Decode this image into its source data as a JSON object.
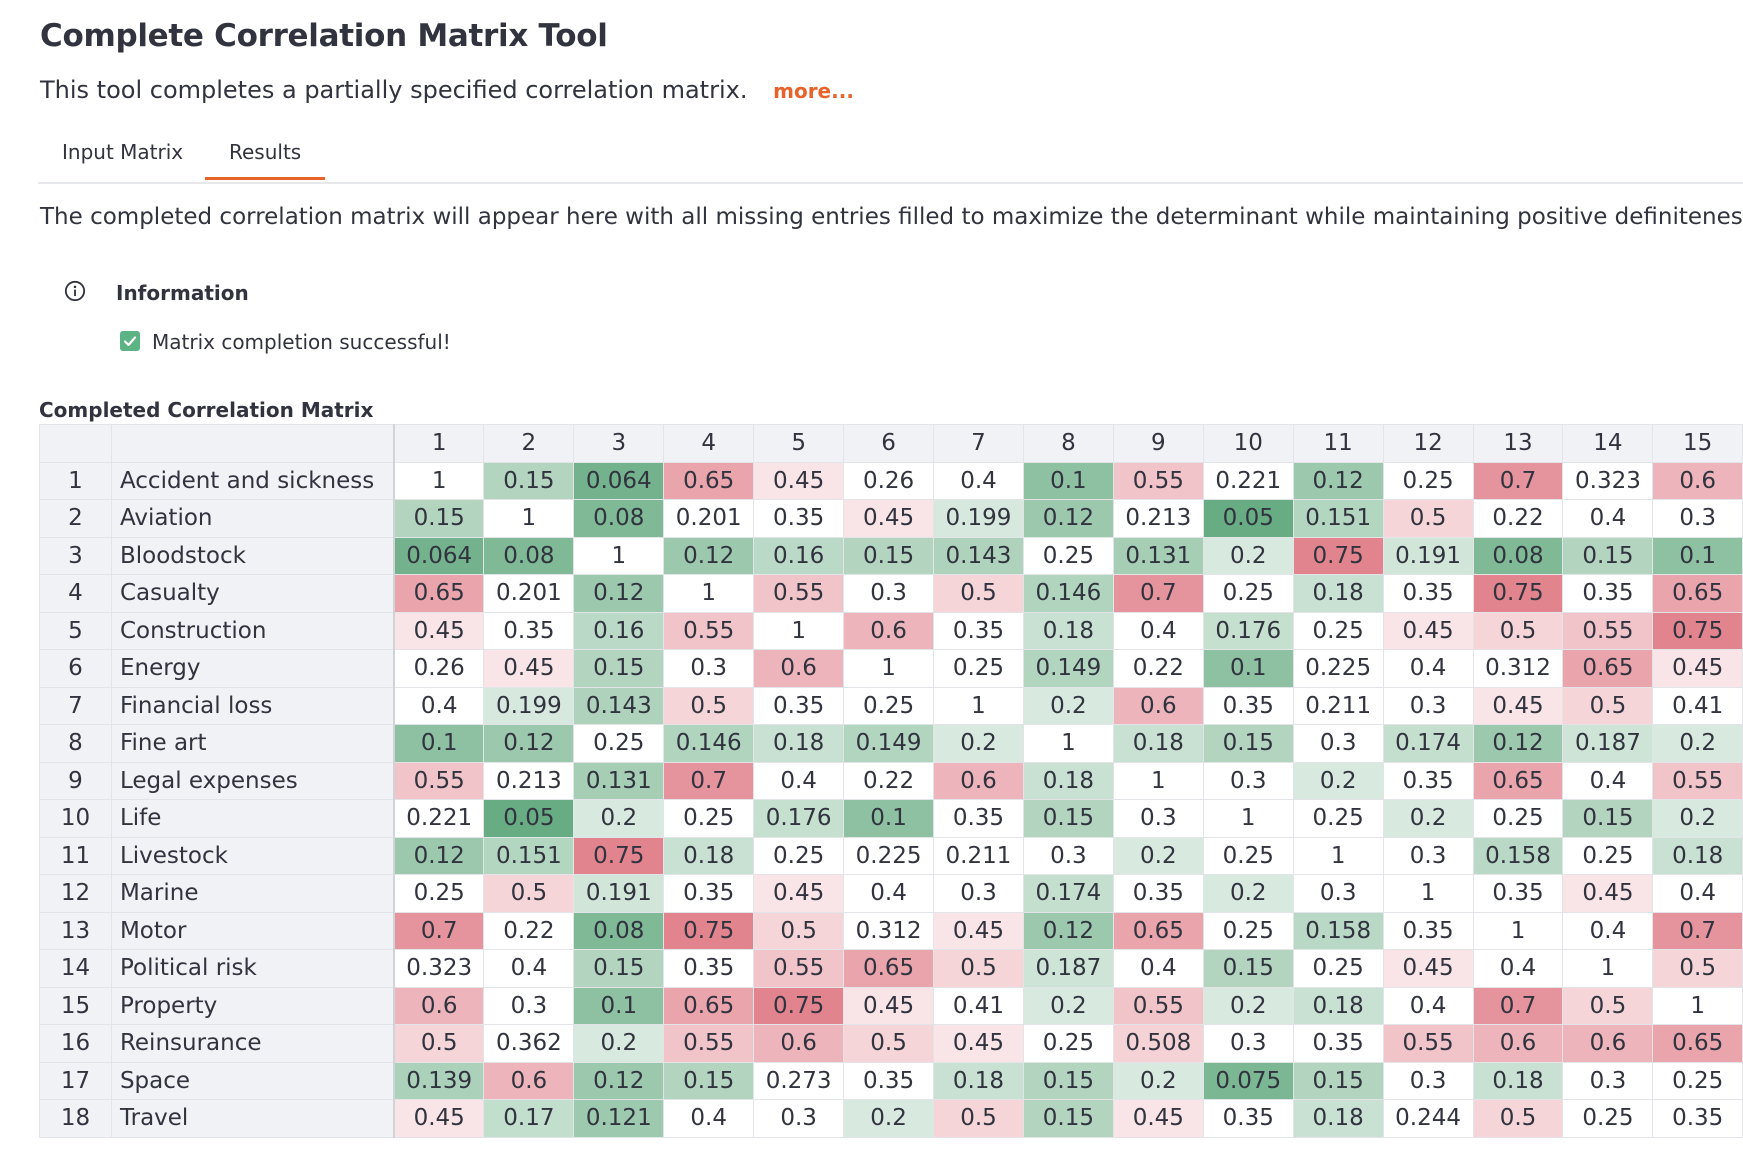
{
  "header": {
    "title": "Complete Correlation Matrix Tool",
    "subtitle": "This tool completes a partially specified correlation matrix.",
    "more_label": "more..."
  },
  "tabs": [
    {
      "label": "Input Matrix",
      "active": false
    },
    {
      "label": "Results",
      "active": true
    }
  ],
  "description": "The completed correlation matrix will appear here with all missing entries filled to maximize the determinant while maintaining positive definiteness.",
  "info": {
    "icon": "info-circle-icon",
    "title": "Information",
    "message": "Matrix completion successful!",
    "message_icon": "checkbox-checked-icon"
  },
  "matrix": {
    "heading": "Completed Correlation Matrix",
    "colors": {
      "red": "#dc6e7a",
      "green": "#4e9e6e",
      "header_bg": "#f0f2f6"
    },
    "columns": [
      "1",
      "2",
      "3",
      "4",
      "5",
      "6",
      "7",
      "8",
      "9",
      "10",
      "11",
      "12",
      "13",
      "14",
      "15"
    ],
    "rows": [
      {
        "idx": "1",
        "name": "Accident and sickness",
        "values": [
          "1",
          "0.15",
          "0.064",
          "0.65",
          "0.45",
          "0.26",
          "0.4",
          "0.1",
          "0.55",
          "0.221",
          "0.12",
          "0.25",
          "0.7",
          "0.323",
          "0.6"
        ]
      },
      {
        "idx": "2",
        "name": "Aviation",
        "values": [
          "0.15",
          "1",
          "0.08",
          "0.201",
          "0.35",
          "0.45",
          "0.199",
          "0.12",
          "0.213",
          "0.05",
          "0.151",
          "0.5",
          "0.22",
          "0.4",
          "0.3"
        ]
      },
      {
        "idx": "3",
        "name": "Bloodstock",
        "values": [
          "0.064",
          "0.08",
          "1",
          "0.12",
          "0.16",
          "0.15",
          "0.143",
          "0.25",
          "0.131",
          "0.2",
          "0.75",
          "0.191",
          "0.08",
          "0.15",
          "0.1"
        ]
      },
      {
        "idx": "4",
        "name": "Casualty",
        "values": [
          "0.65",
          "0.201",
          "0.12",
          "1",
          "0.55",
          "0.3",
          "0.5",
          "0.146",
          "0.7",
          "0.25",
          "0.18",
          "0.35",
          "0.75",
          "0.35",
          "0.65"
        ]
      },
      {
        "idx": "5",
        "name": "Construction",
        "values": [
          "0.45",
          "0.35",
          "0.16",
          "0.55",
          "1",
          "0.6",
          "0.35",
          "0.18",
          "0.4",
          "0.176",
          "0.25",
          "0.45",
          "0.5",
          "0.55",
          "0.75"
        ]
      },
      {
        "idx": "6",
        "name": "Energy",
        "values": [
          "0.26",
          "0.45",
          "0.15",
          "0.3",
          "0.6",
          "1",
          "0.25",
          "0.149",
          "0.22",
          "0.1",
          "0.225",
          "0.4",
          "0.312",
          "0.65",
          "0.45"
        ]
      },
      {
        "idx": "7",
        "name": "Financial loss",
        "values": [
          "0.4",
          "0.199",
          "0.143",
          "0.5",
          "0.35",
          "0.25",
          "1",
          "0.2",
          "0.6",
          "0.35",
          "0.211",
          "0.3",
          "0.45",
          "0.5",
          "0.41"
        ]
      },
      {
        "idx": "8",
        "name": "Fine art",
        "values": [
          "0.1",
          "0.12",
          "0.25",
          "0.146",
          "0.18",
          "0.149",
          "0.2",
          "1",
          "0.18",
          "0.15",
          "0.3",
          "0.174",
          "0.12",
          "0.187",
          "0.2"
        ]
      },
      {
        "idx": "9",
        "name": "Legal expenses",
        "values": [
          "0.55",
          "0.213",
          "0.131",
          "0.7",
          "0.4",
          "0.22",
          "0.6",
          "0.18",
          "1",
          "0.3",
          "0.2",
          "0.35",
          "0.65",
          "0.4",
          "0.55"
        ]
      },
      {
        "idx": "10",
        "name": "Life",
        "values": [
          "0.221",
          "0.05",
          "0.2",
          "0.25",
          "0.176",
          "0.1",
          "0.35",
          "0.15",
          "0.3",
          "1",
          "0.25",
          "0.2",
          "0.25",
          "0.15",
          "0.2"
        ]
      },
      {
        "idx": "11",
        "name": "Livestock",
        "values": [
          "0.12",
          "0.151",
          "0.75",
          "0.18",
          "0.25",
          "0.225",
          "0.211",
          "0.3",
          "0.2",
          "0.25",
          "1",
          "0.3",
          "0.158",
          "0.25",
          "0.18"
        ]
      },
      {
        "idx": "12",
        "name": "Marine",
        "values": [
          "0.25",
          "0.5",
          "0.191",
          "0.35",
          "0.45",
          "0.4",
          "0.3",
          "0.174",
          "0.35",
          "0.2",
          "0.3",
          "1",
          "0.35",
          "0.45",
          "0.4"
        ]
      },
      {
        "idx": "13",
        "name": "Motor",
        "values": [
          "0.7",
          "0.22",
          "0.08",
          "0.75",
          "0.5",
          "0.312",
          "0.45",
          "0.12",
          "0.65",
          "0.25",
          "0.158",
          "0.35",
          "1",
          "0.4",
          "0.7"
        ]
      },
      {
        "idx": "14",
        "name": "Political risk",
        "values": [
          "0.323",
          "0.4",
          "0.15",
          "0.35",
          "0.55",
          "0.65",
          "0.5",
          "0.187",
          "0.4",
          "0.15",
          "0.25",
          "0.45",
          "0.4",
          "1",
          "0.5"
        ]
      },
      {
        "idx": "15",
        "name": "Property",
        "values": [
          "0.6",
          "0.3",
          "0.1",
          "0.65",
          "0.75",
          "0.45",
          "0.41",
          "0.2",
          "0.55",
          "0.2",
          "0.18",
          "0.4",
          "0.7",
          "0.5",
          "1"
        ]
      },
      {
        "idx": "16",
        "name": "Reinsurance",
        "values": [
          "0.5",
          "0.362",
          "0.2",
          "0.55",
          "0.6",
          "0.5",
          "0.45",
          "0.25",
          "0.508",
          "0.3",
          "0.35",
          "0.55",
          "0.6",
          "0.6",
          "0.65"
        ]
      },
      {
        "idx": "17",
        "name": "Space",
        "values": [
          "0.139",
          "0.6",
          "0.12",
          "0.15",
          "0.273",
          "0.35",
          "0.18",
          "0.15",
          "0.2",
          "0.075",
          "0.15",
          "0.3",
          "0.18",
          "0.3",
          "0.25"
        ]
      },
      {
        "idx": "18",
        "name": "Travel",
        "values": [
          "0.45",
          "0.17",
          "0.121",
          "0.4",
          "0.3",
          "0.2",
          "0.5",
          "0.15",
          "0.45",
          "0.35",
          "0.18",
          "0.244",
          "0.5",
          "0.25",
          "0.35"
        ]
      }
    ]
  }
}
